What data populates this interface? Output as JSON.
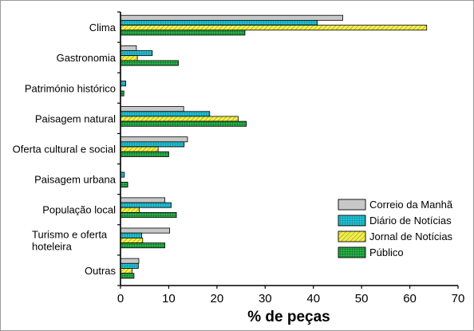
{
  "chart_data": {
    "type": "bar",
    "orientation": "horizontal",
    "categories": [
      "Clima",
      "Gastronomia",
      "Património histórico",
      "Paisagem natural",
      "Oferta cultural e social",
      "Paisagem urbana",
      "População local",
      "Turismo e oferta hoteleira",
      "Outras"
    ],
    "category_label_lines": [
      [
        "Clima"
      ],
      [
        "Gastronomia"
      ],
      [
        "Património histórico"
      ],
      [
        "Paisagem natural"
      ],
      [
        "Oferta cultural e social"
      ],
      [
        "Paisagem urbana"
      ],
      [
        "População local"
      ],
      [
        "Turismo e oferta",
        "hoteleira"
      ],
      [
        "Outras"
      ]
    ],
    "series": [
      {
        "name": "Correio da Manhã",
        "color": "#c8c8c8",
        "pattern": "solid",
        "values": [
          46.1,
          3.3,
          0,
          13.1,
          13.9,
          0,
          9.2,
          10.2,
          3.8
        ]
      },
      {
        "name": "Diário de Notícias",
        "color": "#22c4d6",
        "pattern": "grid",
        "values": [
          40.8,
          6.6,
          1.1,
          18.5,
          13.2,
          0.8,
          10.5,
          4.4,
          3.7
        ]
      },
      {
        "name": "Jornal de Notícias",
        "color": "#f2ee4a",
        "pattern": "hatch",
        "values": [
          63.5,
          3.5,
          0,
          24.4,
          7.8,
          0,
          3.9,
          4.6,
          2.4
        ]
      },
      {
        "name": "Público",
        "color": "#1fa23e",
        "pattern": "grid",
        "values": [
          25.8,
          12.0,
          0.7,
          26.1,
          10.0,
          1.5,
          11.6,
          9.2,
          2.8
        ]
      }
    ],
    "xlabel": "% de peças",
    "ylabel": "",
    "xlim": [
      0,
      70
    ],
    "xticks": [
      0,
      10,
      20,
      30,
      40,
      50,
      60,
      70
    ],
    "grid": false,
    "legend_position": "bottom-right"
  }
}
